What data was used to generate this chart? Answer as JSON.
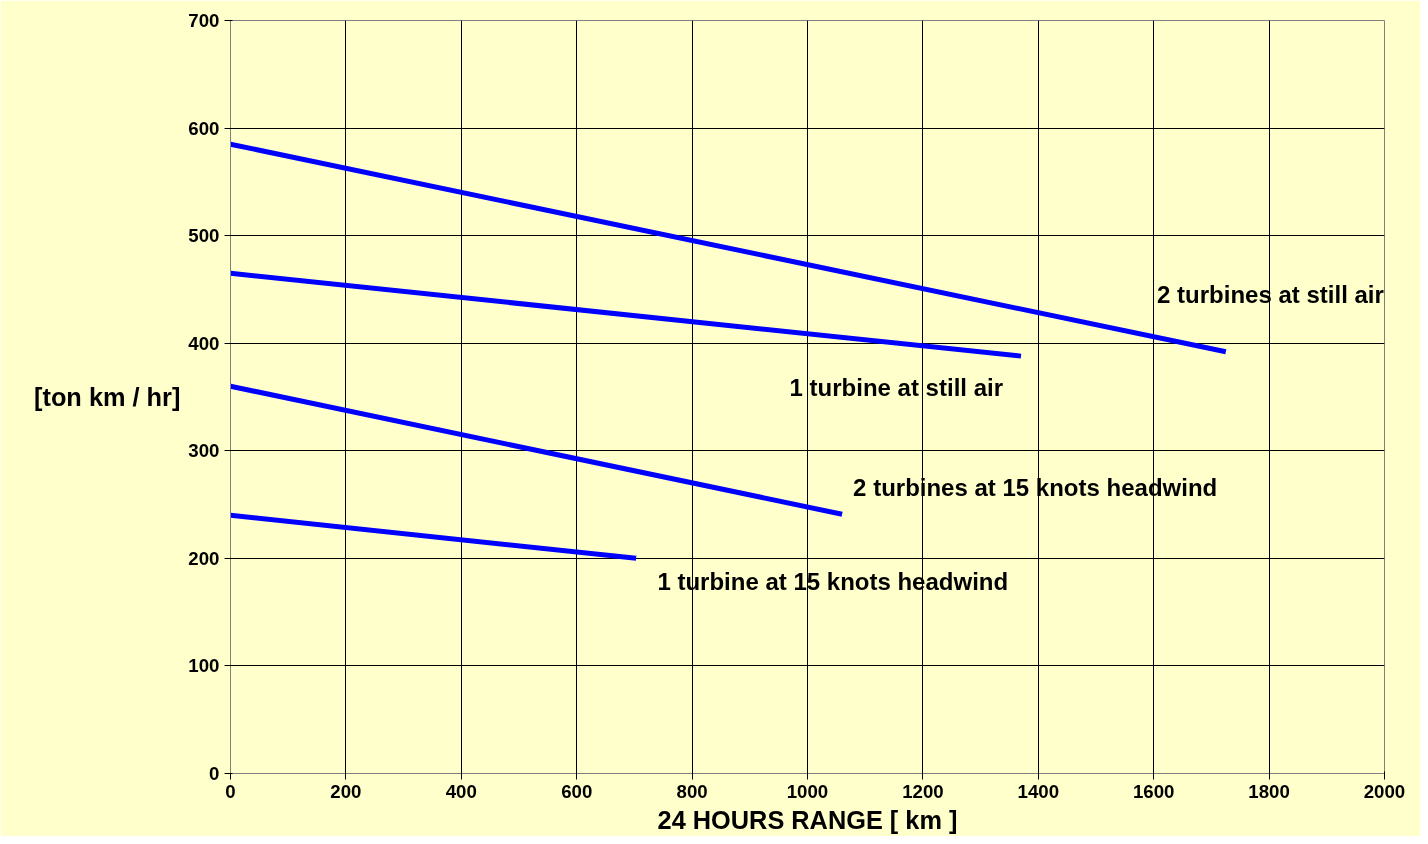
{
  "chart_data": {
    "type": "line",
    "xlabel": "24 HOURS RANGE [ km ]",
    "ylabel": "[ton km / hr]",
    "xlim": [
      0,
      2000
    ],
    "ylim": [
      0,
      700
    ],
    "xticks": [
      0,
      200,
      400,
      600,
      800,
      1000,
      1200,
      1400,
      1600,
      1800,
      2000
    ],
    "yticks": [
      0,
      100,
      200,
      300,
      400,
      500,
      600,
      700
    ],
    "grid": true,
    "legend": false,
    "marker": "none",
    "line_style": "solid",
    "series": [
      {
        "name": "2 turbines at still air",
        "color": "#0000ff",
        "x": [
          0,
          1725
        ],
        "values": [
          585,
          392
        ]
      },
      {
        "name": "1 turbine at still air",
        "color": "#0000ff",
        "x": [
          0,
          1370
        ],
        "values": [
          465,
          388
        ]
      },
      {
        "name": "2 turbines at 15 knots headwind",
        "color": "#0000ff",
        "x": [
          0,
          1060
        ],
        "values": [
          360,
          241
        ]
      },
      {
        "name": "1 turbine at 15 knots headwind",
        "color": "#0000ff",
        "x": [
          0,
          703
        ],
        "values": [
          240,
          200
        ]
      }
    ]
  }
}
